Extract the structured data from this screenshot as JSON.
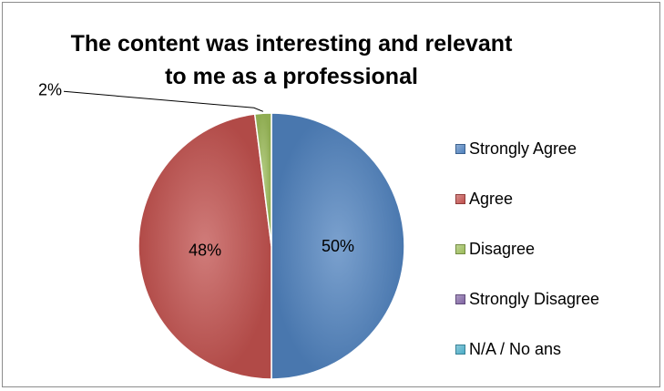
{
  "chart_data": {
    "type": "pie",
    "title": "The content was interesting and relevant to me as a professional",
    "title_lines": [
      "The content was interesting and relevant",
      "to me as a professional"
    ],
    "categories": [
      "Strongly Agree",
      "Agree",
      "Disagree",
      "Strongly Disagree",
      "N/A / No ans"
    ],
    "values": [
      50,
      48,
      2,
      0,
      0
    ],
    "data_labels": [
      "50%",
      "48%",
      "2%",
      "",
      ""
    ],
    "colors": [
      "#4F81BD",
      "#C0504D",
      "#9BBB59",
      "#8064A2",
      "#4BACC6"
    ],
    "legend_position": "right"
  }
}
